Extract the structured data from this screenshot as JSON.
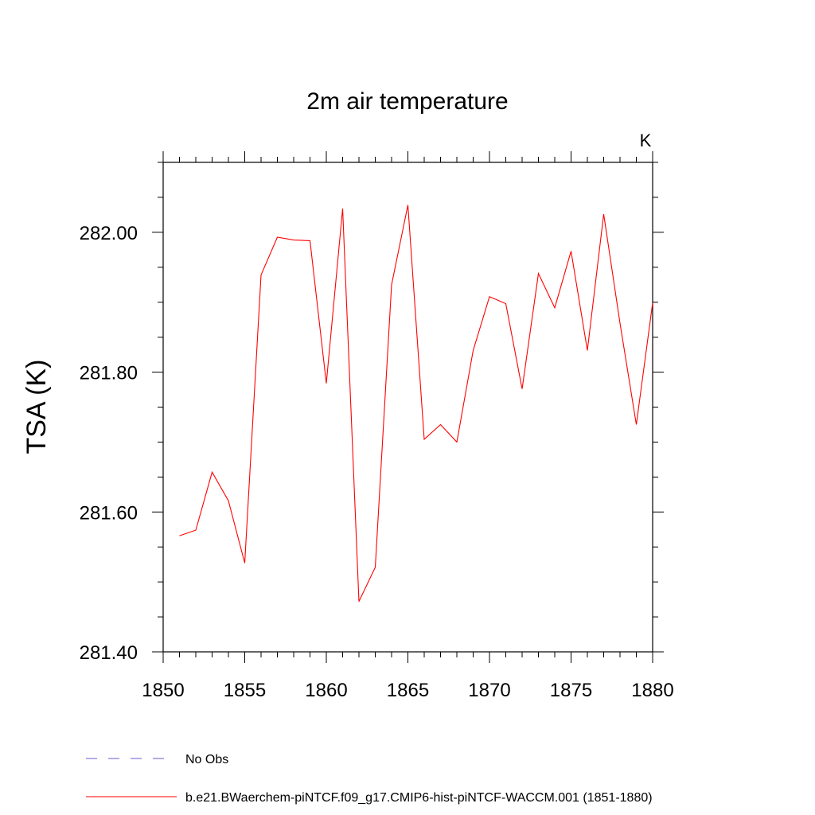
{
  "chart_data": {
    "type": "line",
    "title": "2m air temperature",
    "units": "K",
    "ylabel": "TSA  (K)",
    "xlabel": "",
    "xlim": [
      1850,
      1880
    ],
    "ylim": [
      281.4,
      282.1
    ],
    "x_ticks": [
      1850,
      1855,
      1860,
      1865,
      1870,
      1875,
      1880
    ],
    "y_ticks": [
      281.4,
      281.6,
      281.8,
      282.0
    ],
    "x_tick_labels": [
      "1850",
      "1855",
      "1860",
      "1865",
      "1870",
      "1875",
      "1880"
    ],
    "y_tick_labels": [
      "281.40",
      "281.60",
      "281.80",
      "282.00"
    ],
    "grid": false,
    "legend_position": "bottom",
    "series": [
      {
        "name": "No Obs",
        "color": "#6a5acd",
        "style": "dashed",
        "x": [],
        "values": []
      },
      {
        "name": "b.e21.BWaerchem-piNTCF.f09_g17.CMIP6-hist-piNTCF-WACCM.001 (1851-1880)",
        "color": "#ff0000",
        "style": "solid",
        "x": [
          1851,
          1852,
          1853,
          1854,
          1855,
          1856,
          1857,
          1858,
          1859,
          1860,
          1861,
          1862,
          1863,
          1864,
          1865,
          1866,
          1867,
          1868,
          1869,
          1870,
          1871,
          1872,
          1873,
          1874,
          1875,
          1876,
          1877,
          1878,
          1879,
          1880
        ],
        "values": [
          281.566,
          281.574,
          281.657,
          281.616,
          281.527,
          281.939,
          281.993,
          281.989,
          281.988,
          281.784,
          282.034,
          281.472,
          281.521,
          281.925,
          282.039,
          281.704,
          281.725,
          281.7,
          281.831,
          281.908,
          281.898,
          281.776,
          281.941,
          281.892,
          281.973,
          281.831,
          282.026,
          281.87,
          281.725,
          281.899
        ]
      }
    ]
  }
}
